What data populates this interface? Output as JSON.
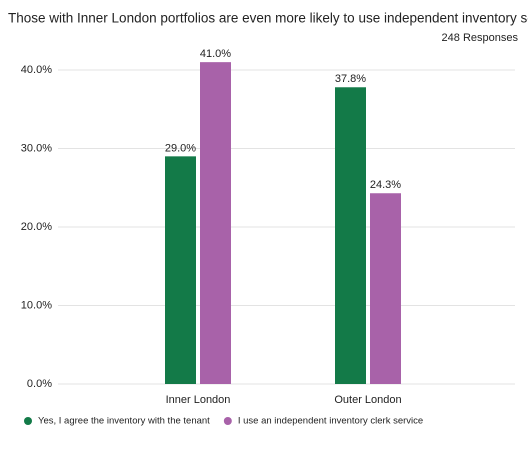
{
  "chart_data": {
    "type": "bar",
    "title": "Those with Inner London portfolios are even more likely to use independent inventory services",
    "subtitle": "248 Responses",
    "categories": [
      "Inner London",
      "Outer London"
    ],
    "series": [
      {
        "name": "Yes, I agree the inventory with the tenant",
        "color": "#137a48",
        "values": [
          29.0,
          37.8
        ],
        "value_labels": [
          "29.0%",
          "37.8%"
        ]
      },
      {
        "name": "I use an independent inventory clerk service",
        "color": "#a862a9",
        "values": [
          41.0,
          24.3
        ],
        "value_labels": [
          "41.0%",
          "24.3%"
        ]
      }
    ],
    "ylim": [
      0,
      40
    ],
    "yticks": [
      {
        "value": 0,
        "label": "0.0%"
      },
      {
        "value": 10,
        "label": "10.0%"
      },
      {
        "value": 20,
        "label": "20.0%"
      },
      {
        "value": 30,
        "label": "30.0%"
      },
      {
        "value": 40,
        "label": "40.0%"
      }
    ],
    "grid": true,
    "legend": "bottom"
  }
}
